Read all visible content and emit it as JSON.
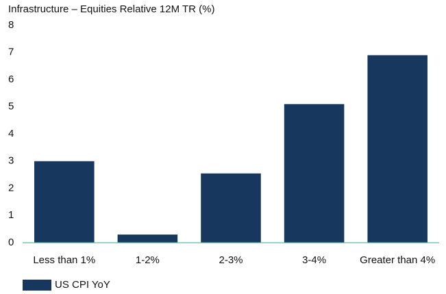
{
  "chart_data": {
    "type": "bar",
    "title": "Infrastructure – Equities Relative 12M TR (%)",
    "categories": [
      "Less than 1%",
      "1-2%",
      "2-3%",
      "3-4%",
      "Greater than 4%"
    ],
    "series": [
      {
        "name": "US CPI YoY",
        "color": "#17375e",
        "values": [
          3.0,
          0.3,
          2.55,
          5.1,
          6.9
        ]
      }
    ],
    "ylim": [
      0,
      8
    ],
    "yticks": [
      0,
      1,
      2,
      3,
      4,
      5,
      6,
      7,
      8
    ],
    "grid": false,
    "legend": "bottom-left"
  }
}
